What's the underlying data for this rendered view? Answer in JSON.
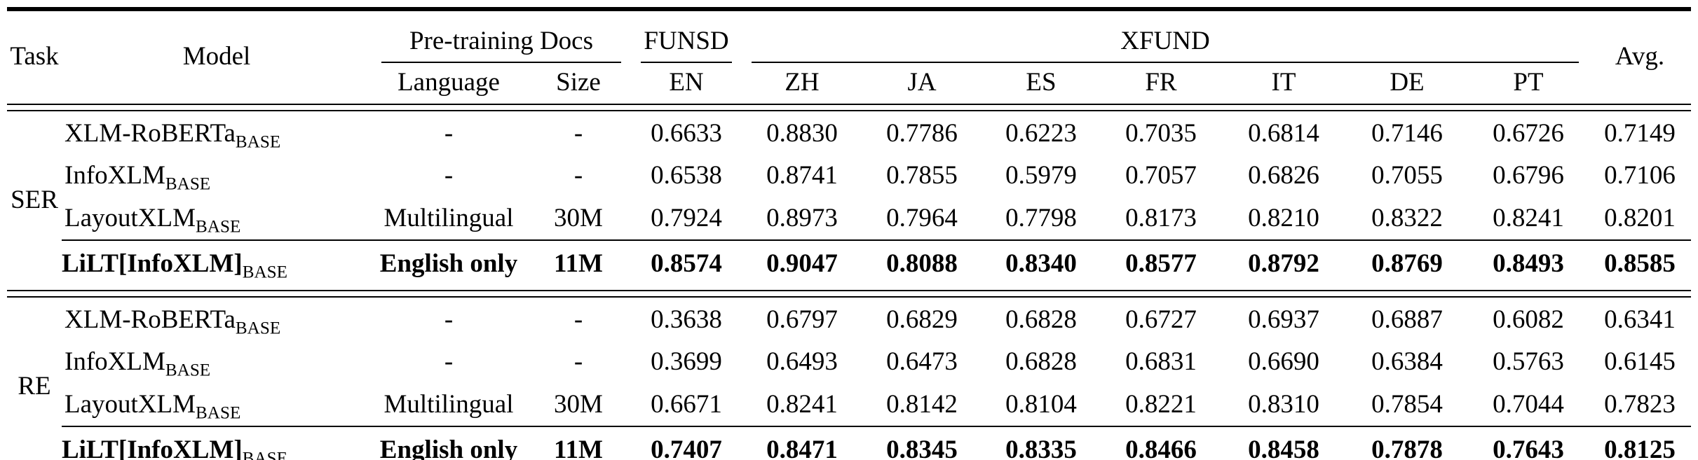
{
  "page": {
    "background_color": "#ffffff",
    "text_color": "#000000",
    "rule_color": "#000000"
  },
  "table": {
    "header": {
      "task": "Task",
      "model": "Model",
      "pretraining_docs": "Pre-training Docs",
      "funsd": "FUNSD",
      "xfund": "XFUND",
      "avg": "Avg.",
      "language": "Language",
      "size": "Size",
      "funsd_langs": [
        "EN"
      ],
      "xfund_langs": [
        "ZH",
        "JA",
        "ES",
        "FR",
        "IT",
        "DE",
        "PT"
      ]
    },
    "score_columns": [
      "EN",
      "ZH",
      "JA",
      "ES",
      "FR",
      "IT",
      "DE",
      "PT",
      "Avg."
    ],
    "groups": [
      {
        "task": "SER",
        "rows": [
          {
            "model": "XLM-RoBERTa",
            "model_sub": "BASE",
            "language": "-",
            "size": "-",
            "bold": false,
            "scores": [
              "0.6633",
              "0.8830",
              "0.7786",
              "0.6223",
              "0.7035",
              "0.6814",
              "0.7146",
              "0.6726",
              "0.7149"
            ]
          },
          {
            "model": "InfoXLM",
            "model_sub": "BASE",
            "language": "-",
            "size": "-",
            "bold": false,
            "scores": [
              "0.6538",
              "0.8741",
              "0.7855",
              "0.5979",
              "0.7057",
              "0.6826",
              "0.7055",
              "0.6796",
              "0.7106"
            ]
          },
          {
            "model": "LayoutXLM",
            "model_sub": "BASE",
            "language": "Multilingual",
            "size": "30M",
            "bold": false,
            "scores": [
              "0.7924",
              "0.8973",
              "0.7964",
              "0.7798",
              "0.8173",
              "0.8210",
              "0.8322",
              "0.8241",
              "0.8201"
            ]
          },
          {
            "model": "LiLT[InfoXLM]",
            "model_sub": "BASE",
            "language": "English only",
            "size": "11M",
            "bold": true,
            "scores": [
              "0.8574",
              "0.9047",
              "0.8088",
              "0.8340",
              "0.8577",
              "0.8792",
              "0.8769",
              "0.8493",
              "0.8585"
            ]
          }
        ]
      },
      {
        "task": "RE",
        "rows": [
          {
            "model": "XLM-RoBERTa",
            "model_sub": "BASE",
            "language": "-",
            "size": "-",
            "bold": false,
            "scores": [
              "0.3638",
              "0.6797",
              "0.6829",
              "0.6828",
              "0.6727",
              "0.6937",
              "0.6887",
              "0.6082",
              "0.6341"
            ]
          },
          {
            "model": "InfoXLM",
            "model_sub": "BASE",
            "language": "-",
            "size": "-",
            "bold": false,
            "scores": [
              "0.3699",
              "0.6493",
              "0.6473",
              "0.6828",
              "0.6831",
              "0.6690",
              "0.6384",
              "0.5763",
              "0.6145"
            ]
          },
          {
            "model": "LayoutXLM",
            "model_sub": "BASE",
            "language": "Multilingual",
            "size": "30M",
            "bold": false,
            "scores": [
              "0.6671",
              "0.8241",
              "0.8142",
              "0.8104",
              "0.8221",
              "0.8310",
              "0.7854",
              "0.7044",
              "0.7823"
            ]
          },
          {
            "model": "LiLT[InfoXLM]",
            "model_sub": "BASE",
            "language": "English only",
            "size": "11M",
            "bold": true,
            "scores": [
              "0.7407",
              "0.8471",
              "0.8345",
              "0.8335",
              "0.8466",
              "0.8458",
              "0.7878",
              "0.7643",
              "0.8125"
            ]
          }
        ]
      }
    ]
  }
}
